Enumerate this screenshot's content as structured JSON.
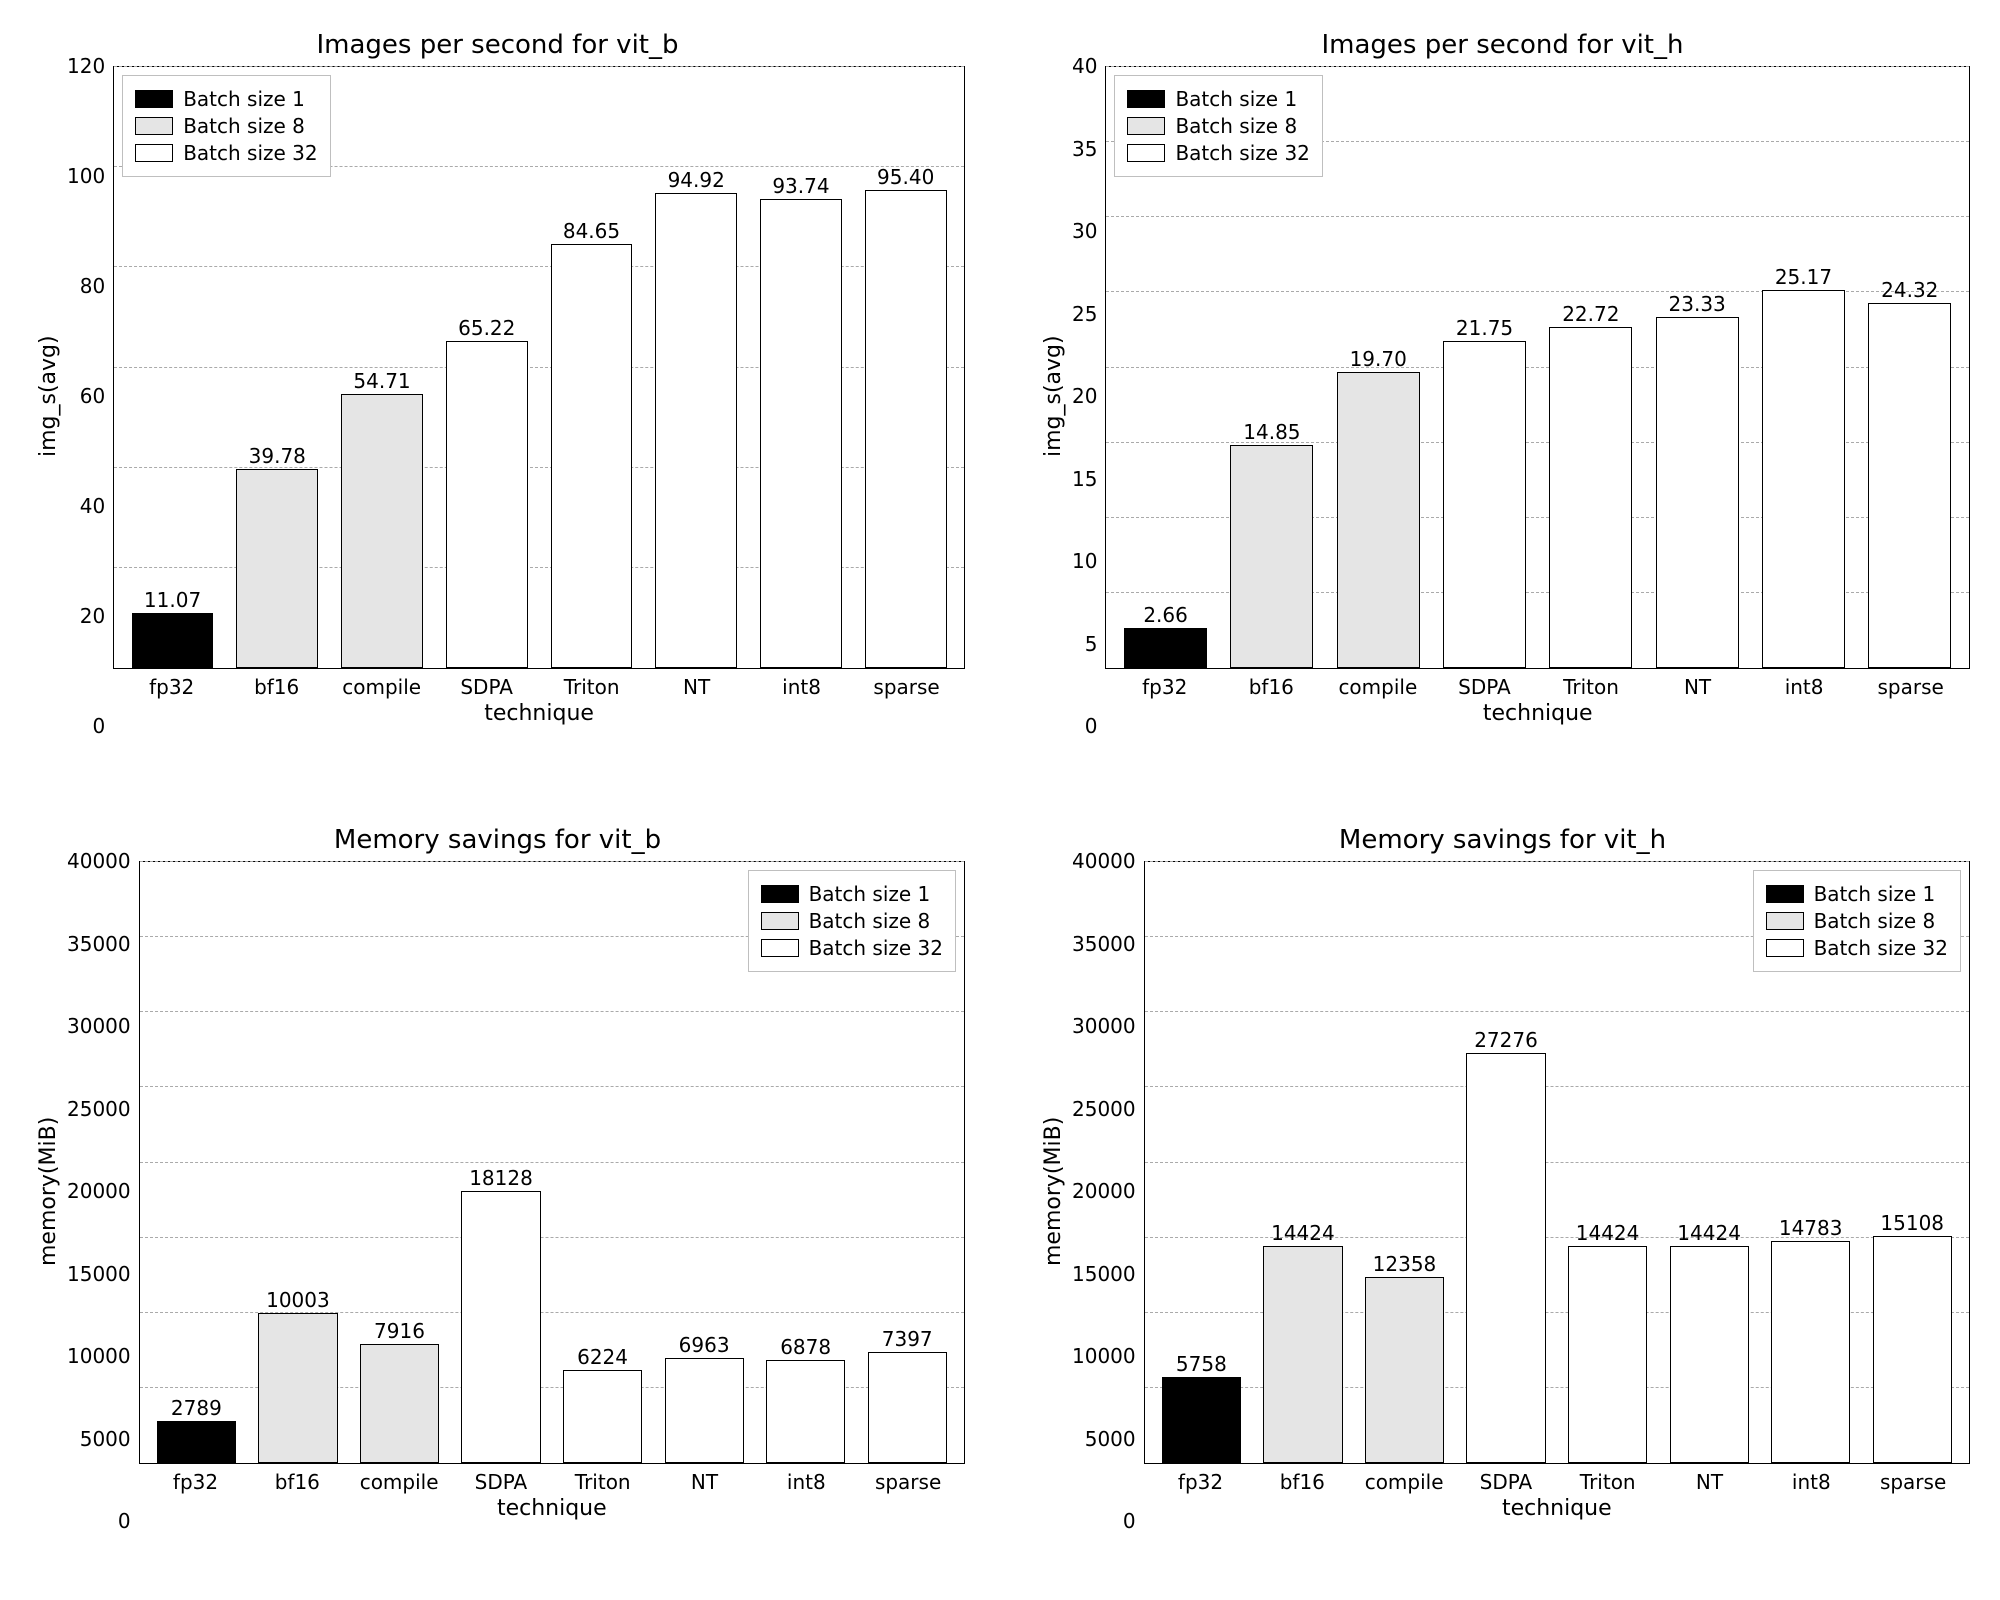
{
  "legend": {
    "items": [
      {
        "label": "Batch size 1",
        "color": "#000000"
      },
      {
        "label": "Batch size 8",
        "color": "#e5e5e5"
      },
      {
        "label": "Batch size 32",
        "color": "#ffffff"
      }
    ],
    "border_color": "#bfbfbf",
    "fontsize": 20
  },
  "bar_styling": {
    "bar_width": 0.78,
    "border_color": "#000000",
    "border_width": 1.5
  },
  "grid_styling": {
    "color": "#aaaaaa",
    "dash": true
  },
  "charts": [
    {
      "id": "vit_b_imgs",
      "title": "Images per second for vit_b",
      "ylabel": "img_s(avg)",
      "xlabel": "technique",
      "ylim": [
        0,
        120
      ],
      "ytick_step": 20,
      "categories": [
        "fp32",
        "bf16",
        "compile",
        "SDPA",
        "Triton",
        "NT",
        "int8",
        "sparse"
      ],
      "values": [
        11.07,
        39.78,
        54.71,
        65.22,
        84.65,
        94.92,
        93.74,
        95.4
      ],
      "value_labels": [
        "11.07",
        "39.78",
        "54.71",
        "65.22",
        "84.65",
        "94.92",
        "93.74",
        "95.40"
      ],
      "bar_colors": [
        "#000000",
        "#e5e5e5",
        "#e5e5e5",
        "#ffffff",
        "#ffffff",
        "#ffffff",
        "#ffffff",
        "#ffffff"
      ],
      "legend_pos": "top-left",
      "title_fontsize": 26,
      "label_fontsize": 22,
      "tick_fontsize": 20
    },
    {
      "id": "vit_h_imgs",
      "title": "Images per second for vit_h",
      "ylabel": "img_s(avg)",
      "xlabel": "technique",
      "ylim": [
        0,
        40
      ],
      "ytick_step": 5,
      "categories": [
        "fp32",
        "bf16",
        "compile",
        "SDPA",
        "Triton",
        "NT",
        "int8",
        "sparse"
      ],
      "values": [
        2.66,
        14.85,
        19.7,
        21.75,
        22.72,
        23.33,
        25.17,
        24.32
      ],
      "value_labels": [
        "2.66",
        "14.85",
        "19.70",
        "21.75",
        "22.72",
        "23.33",
        "25.17",
        "24.32"
      ],
      "bar_colors": [
        "#000000",
        "#e5e5e5",
        "#e5e5e5",
        "#ffffff",
        "#ffffff",
        "#ffffff",
        "#ffffff",
        "#ffffff"
      ],
      "legend_pos": "top-left",
      "title_fontsize": 26,
      "label_fontsize": 22,
      "tick_fontsize": 20
    },
    {
      "id": "vit_b_mem",
      "title": "Memory savings for vit_b",
      "ylabel": "memory(MiB)",
      "xlabel": "technique",
      "ylim": [
        0,
        40000
      ],
      "ytick_step": 5000,
      "categories": [
        "fp32",
        "bf16",
        "compile",
        "SDPA",
        "Triton",
        "NT",
        "int8",
        "sparse"
      ],
      "values": [
        2789,
        10003,
        7916,
        18128,
        6224,
        6963,
        6878,
        7397
      ],
      "value_labels": [
        "2789",
        "10003",
        "7916",
        "18128",
        "6224",
        "6963",
        "6878",
        "7397"
      ],
      "bar_colors": [
        "#000000",
        "#e5e5e5",
        "#e5e5e5",
        "#ffffff",
        "#ffffff",
        "#ffffff",
        "#ffffff",
        "#ffffff"
      ],
      "legend_pos": "top-right",
      "title_fontsize": 26,
      "label_fontsize": 22,
      "tick_fontsize": 20
    },
    {
      "id": "vit_h_mem",
      "title": "Memory savings for vit_h",
      "ylabel": "memory(MiB)",
      "xlabel": "technique",
      "ylim": [
        0,
        40000
      ],
      "ytick_step": 5000,
      "categories": [
        "fp32",
        "bf16",
        "compile",
        "SDPA",
        "Triton",
        "NT",
        "int8",
        "sparse"
      ],
      "values": [
        5758,
        14424,
        12358,
        27276,
        14424,
        14424,
        14783,
        15108
      ],
      "value_labels": [
        "5758",
        "14424",
        "12358",
        "27276",
        "14424",
        "14424",
        "14783",
        "15108"
      ],
      "bar_colors": [
        "#000000",
        "#e5e5e5",
        "#e5e5e5",
        "#ffffff",
        "#ffffff",
        "#ffffff",
        "#ffffff",
        "#ffffff"
      ],
      "legend_pos": "top-right",
      "title_fontsize": 26,
      "label_fontsize": 22,
      "tick_fontsize": 20
    }
  ]
}
